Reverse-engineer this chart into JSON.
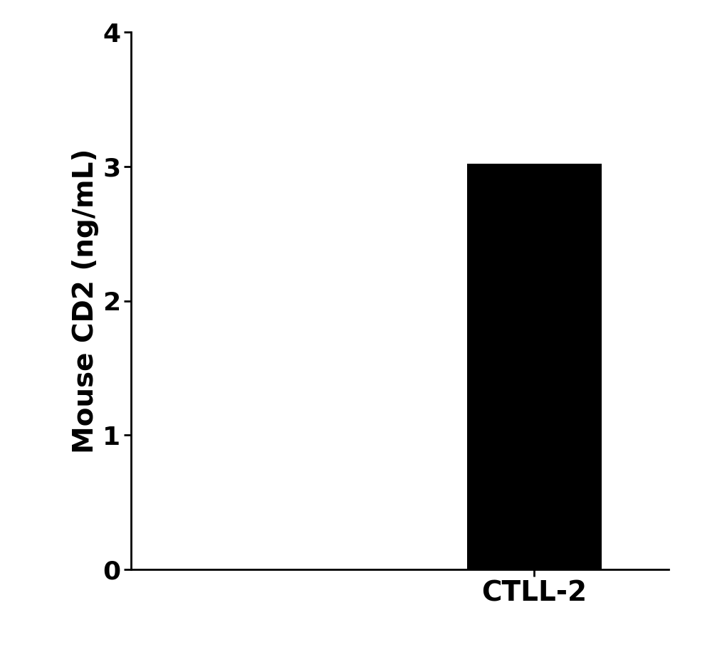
{
  "categories": [
    "CTLL-2"
  ],
  "values": [
    3.02
  ],
  "bar_color": "#000000",
  "ylabel": "Mouse CD2 (ng/mL)",
  "ylim": [
    0,
    4
  ],
  "yticks": [
    0,
    1,
    2,
    3,
    4
  ],
  "background_color": "#ffffff",
  "bar_width": 0.5,
  "ylabel_fontsize": 28,
  "tick_fontsize": 26,
  "xlabel_fontsize": 28,
  "tick_label_fontweight": "bold",
  "xlabel_fontweight": "bold",
  "ylabel_fontweight": "bold",
  "xlim": [
    -1.0,
    1.0
  ]
}
